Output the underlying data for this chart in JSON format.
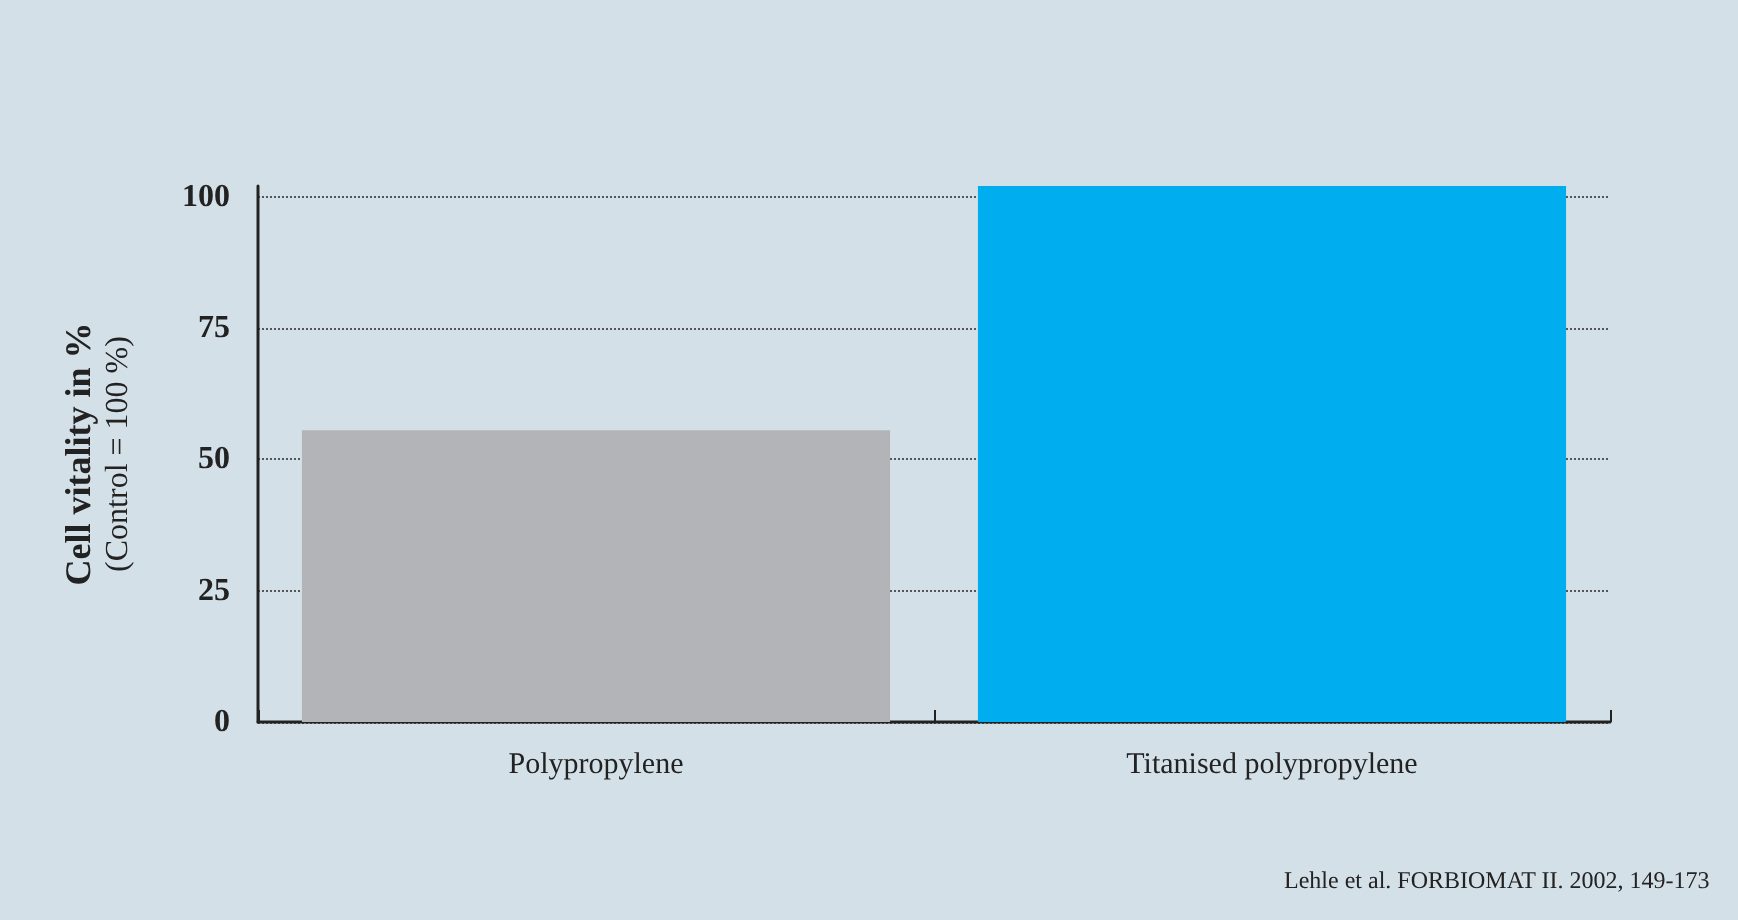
{
  "chart_data": {
    "type": "bar",
    "ylabel": "Cell vitality in %\n(Control = 100 %)",
    "categories": [
      "Polypropylene",
      "Titanised polypropylene"
    ],
    "values": [
      55.5,
      102
    ],
    "colors": [
      "#b3b4b7",
      "#00adee"
    ],
    "ylim": [
      0,
      102
    ],
    "yticks": [
      0,
      25,
      50,
      75,
      100
    ],
    "grid": "y",
    "annotations": [
      "Lehle et al. FORBIOMAT II. 2002, 149-173"
    ]
  }
}
